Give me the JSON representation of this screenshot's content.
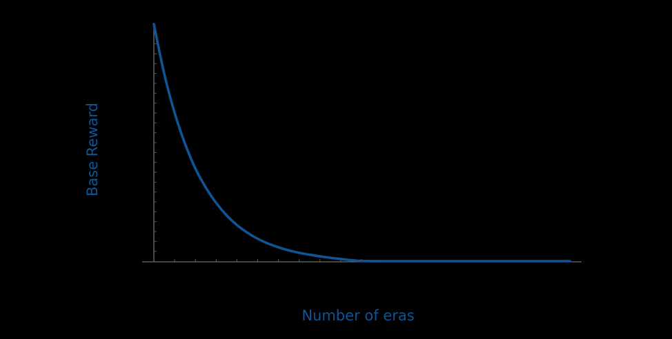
{
  "chart_data": {
    "type": "line",
    "title": "",
    "xlabel": "Number of eras",
    "ylabel": "Base Reward",
    "x_range": [
      0,
      20
    ],
    "y_range": [
      0,
      1
    ],
    "grid": false,
    "legend": "none",
    "x_ticks_labeled": false,
    "y_ticks_labeled": false,
    "x_tick_count": 10,
    "y_tick_count": 24,
    "series": [
      {
        "color": "#0f5596",
        "x": [
          0,
          0.5,
          1,
          1.5,
          2,
          2.5,
          3,
          3.5,
          4,
          4.5,
          5,
          5.5,
          6,
          6.5,
          7,
          7.5,
          8,
          8.5,
          9,
          9.5,
          10,
          11,
          12,
          13,
          14,
          15,
          16,
          17,
          18,
          19,
          20
        ],
        "y": [
          1.0,
          0.79,
          0.625,
          0.495,
          0.39,
          0.31,
          0.245,
          0.193,
          0.152,
          0.12,
          0.094,
          0.074,
          0.058,
          0.045,
          0.035,
          0.027,
          0.02,
          0.014,
          0.009,
          0.004,
          0.001,
          0,
          0,
          0,
          0,
          0,
          0,
          0,
          0,
          0,
          0
        ]
      }
    ]
  }
}
